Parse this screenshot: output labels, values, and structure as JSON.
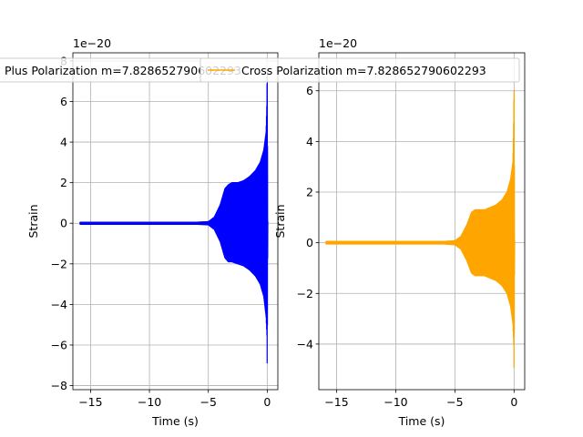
{
  "chart_data": [
    {
      "type": "line",
      "xlabel": "Time (s)",
      "ylabel": "Strain",
      "offset_text": "1e−20",
      "xlim": [
        -16.5,
        0.9
      ],
      "ylim": [
        -8.2,
        8.4
      ],
      "xticks": [
        -15,
        -10,
        -5,
        0
      ],
      "xtick_labels": [
        "−15",
        "−10",
        "−5",
        "0"
      ],
      "yticks": [
        -8,
        -6,
        -4,
        -2,
        0,
        2,
        4,
        6,
        8
      ],
      "ytick_labels": [
        "−8",
        "−6",
        "−4",
        "−2",
        "0",
        "2",
        "4",
        "6",
        "8"
      ],
      "grid": true,
      "legend_position": "top",
      "series": [
        {
          "name": "Plus Polarization m=7.828652790602293",
          "color": "#0000ff",
          "t_start": -15.9,
          "t_end": 0.05,
          "envelope": {
            "t": [
              -15.9,
              -6,
              -5,
              -4.5,
              -4,
              -3.6,
              -3.3,
              -3.0,
              -2.5,
              -2.0,
              -1.5,
              -1.0,
              -0.6,
              -0.3,
              -0.1,
              -0.03,
              0.0,
              0.05
            ],
            "upper": [
              0.05,
              0.05,
              0.08,
              0.3,
              0.9,
              1.7,
              1.9,
              2.0,
              2.0,
              2.1,
              2.3,
              2.6,
              3.0,
              3.6,
              4.5,
              6.0,
              8.2,
              0.1
            ],
            "lower": [
              -0.05,
              -0.05,
              -0.08,
              -0.3,
              -0.9,
              -1.7,
              -1.9,
              -1.9,
              -2.0,
              -2.1,
              -2.3,
              -2.6,
              -3.0,
              -3.6,
              -4.6,
              -5.5,
              -7.3,
              -0.1
            ]
          }
        }
      ]
    },
    {
      "type": "line",
      "xlabel": "Time (s)",
      "ylabel": "Strain",
      "offset_text": "1e−20",
      "xlim": [
        -16.5,
        0.9
      ],
      "ylim": [
        -5.8,
        7.5
      ],
      "xticks": [
        -15,
        -10,
        -5,
        0
      ],
      "xtick_labels": [
        "−15",
        "−10",
        "−5",
        "0"
      ],
      "yticks": [
        -4,
        -2,
        0,
        2,
        4,
        6
      ],
      "ytick_labels": [
        "−4",
        "−2",
        "0",
        "2",
        "4",
        "6"
      ],
      "grid": true,
      "legend_position": "top",
      "series": [
        {
          "name": "Cross Polarization m=7.828652790602293",
          "color": "#ffa500",
          "t_start": -15.9,
          "t_end": 0.05,
          "envelope": {
            "t": [
              -15.9,
              -6,
              -5,
              -4.5,
              -4,
              -3.6,
              -3.3,
              -3.0,
              -2.5,
              -2.0,
              -1.5,
              -1.0,
              -0.6,
              -0.3,
              -0.1,
              -0.03,
              0.0,
              0.05
            ],
            "upper": [
              0.05,
              0.05,
              0.08,
              0.25,
              0.7,
              1.2,
              1.3,
              1.3,
              1.3,
              1.4,
              1.5,
              1.7,
              2.0,
              2.5,
              3.2,
              5.0,
              6.6,
              0.1
            ],
            "lower": [
              -0.05,
              -0.05,
              -0.08,
              -0.25,
              -0.7,
              -1.2,
              -1.3,
              -1.3,
              -1.3,
              -1.4,
              -1.5,
              -1.7,
              -2.0,
              -2.5,
              -3.2,
              -4.0,
              -5.2,
              -0.1
            ]
          }
        }
      ]
    }
  ]
}
